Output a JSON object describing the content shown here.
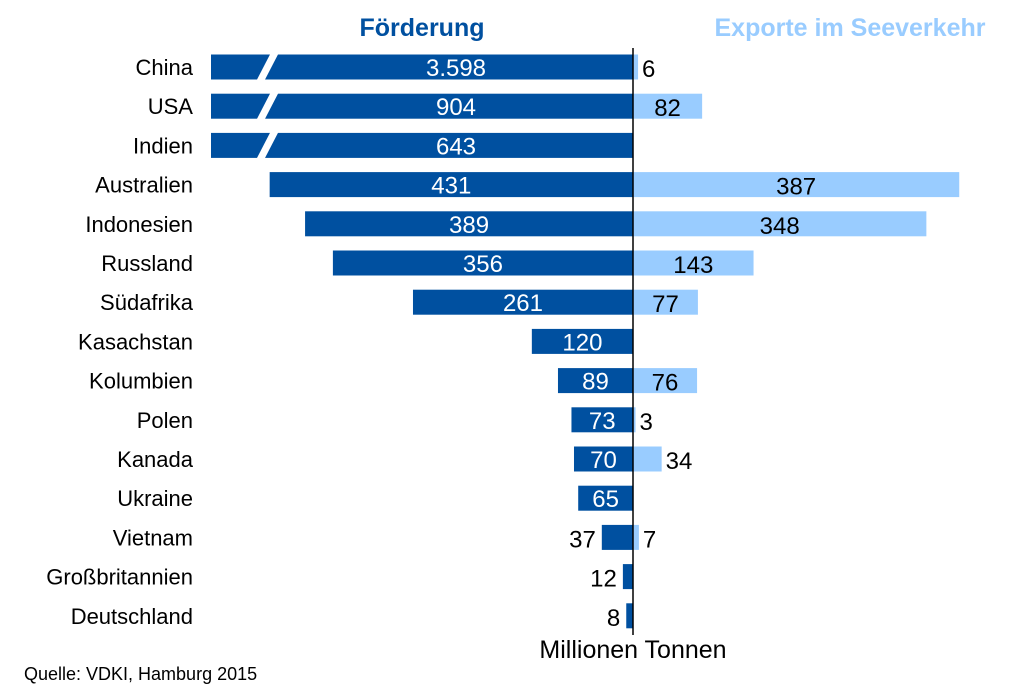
{
  "chart_data": {
    "type": "bar",
    "orientation": "horizontal-diverging",
    "unit_label": "Millionen Tonnen",
    "source": "Quelle: VDKI, Hamburg 2015",
    "categories": [
      "China",
      "USA",
      "Indien",
      "Australien",
      "Indonesien",
      "Russland",
      "Südafrika",
      "Kasachstan",
      "Kolumbien",
      "Polen",
      "Kanada",
      "Ukraine",
      "Vietnam",
      "Großbritannien",
      "Deutschland"
    ],
    "series": [
      {
        "name": "Förderung",
        "direction": "left",
        "color": "#0050A0",
        "values": [
          3598,
          904,
          643,
          431,
          389,
          356,
          261,
          120,
          89,
          73,
          70,
          65,
          37,
          12,
          8
        ],
        "labels": [
          "3.598",
          "904",
          "643",
          "431",
          "389",
          "356",
          "261",
          "120",
          "89",
          "73",
          "70",
          "65",
          "37",
          "12",
          "8"
        ],
        "axis_break": [
          "China",
          "USA",
          "Indien"
        ]
      },
      {
        "name": "Exporte im Seeverkehr",
        "direction": "right",
        "color": "#99CCFF",
        "values": [
          6,
          82,
          null,
          387,
          348,
          143,
          77,
          null,
          76,
          3,
          34,
          null,
          7,
          null,
          null
        ],
        "labels": [
          "6",
          "82",
          "",
          "387",
          "348",
          "143",
          "77",
          "",
          "76",
          "3",
          "34",
          "",
          "7",
          "",
          ""
        ]
      }
    ],
    "xlim": [
      -431,
      387
    ],
    "grid": false,
    "legend": "top"
  }
}
